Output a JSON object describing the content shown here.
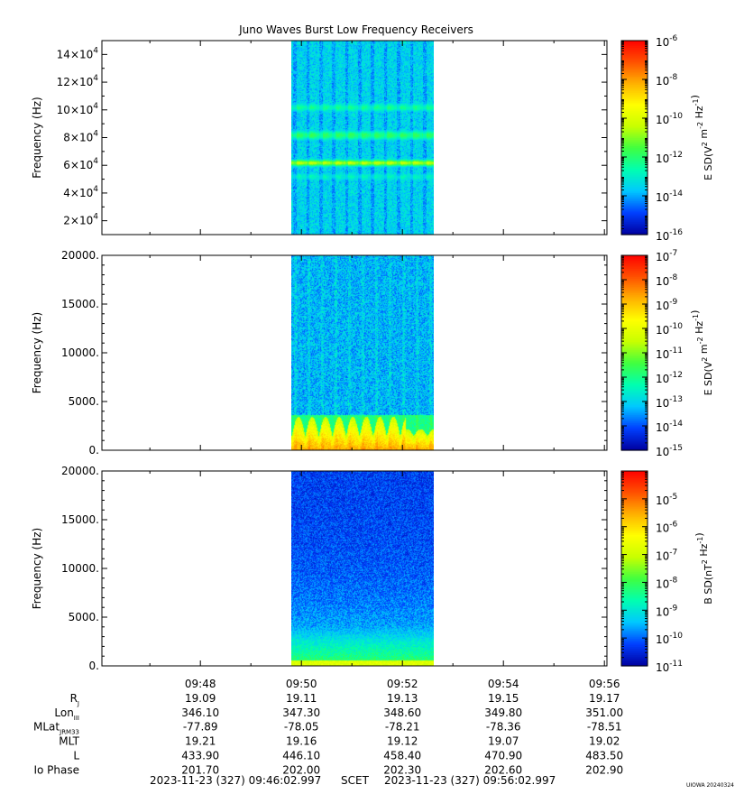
{
  "title": "Juno Waves Burst Low Frequency Receivers",
  "watermark": "UIOWA 20240324",
  "time_range": {
    "start": "2023-11-23 (327) 09:46:02.997",
    "label": "SCET",
    "end": "2023-11-23 (327) 09:56:02.997"
  },
  "chart_data": [
    {
      "type": "heatmap",
      "title": "",
      "ylabel": "Frequency (Hz)",
      "ytick_labels": [
        "14×10^4",
        "12×10^4",
        "10×10^4",
        "8×10^4",
        "6×10^4",
        "4×10^4",
        "2×10^4"
      ],
      "ytick_values": [
        140000,
        120000,
        100000,
        80000,
        60000,
        40000,
        20000
      ],
      "ylim": [
        10000,
        150000
      ],
      "xlim": [
        "09:46:02.997",
        "09:56:02.997"
      ],
      "data_interval": [
        "09:49:48",
        "09:52:37"
      ],
      "colorbar": {
        "label": "E SD(V^2 m^-2 Hz^-1)",
        "scale": "log",
        "range": [
          -16,
          -6
        ],
        "tick_exponents": [
          -6,
          -8,
          -10,
          -12,
          -14,
          -16
        ],
        "colors": [
          "#0000a0",
          "#0040ff",
          "#00c8ff",
          "#00ffb0",
          "#40ff40",
          "#c8ff00",
          "#ffff00",
          "#ffb000",
          "#ff5000",
          "#ff0000"
        ]
      },
      "features": [
        {
          "freq_hz": 62000,
          "level_exp": -10.5,
          "note": "intense band"
        },
        {
          "freq_hz": 82000,
          "level_exp": -12.0,
          "note": "band"
        },
        {
          "freq_hz": 102000,
          "level_exp": -12.5,
          "note": "band"
        },
        {
          "freq_hz": 52000,
          "level_exp": -13.0,
          "note": "band"
        }
      ],
      "background_level_exp": -13.5
    },
    {
      "type": "heatmap",
      "title": "",
      "ylabel": "Frequency (Hz)",
      "ytick_labels": [
        "20000.",
        "15000.",
        "10000.",
        "5000.",
        "0."
      ],
      "ytick_values": [
        20000,
        15000,
        10000,
        5000,
        0
      ],
      "ylim": [
        0,
        20000
      ],
      "xlim": [
        "09:46:02.997",
        "09:56:02.997"
      ],
      "data_interval": [
        "09:49:48",
        "09:52:37"
      ],
      "colorbar": {
        "label": "E SD(V^2 m^-2 Hz^-1)",
        "scale": "log",
        "range": [
          -15,
          -7
        ],
        "tick_exponents": [
          -7,
          -8,
          -9,
          -10,
          -11,
          -12,
          -13,
          -14,
          -15
        ],
        "colors": [
          "#0000a0",
          "#0040ff",
          "#00c8ff",
          "#00ffb0",
          "#40ff40",
          "#c8ff00",
          "#ffff00",
          "#ffb000",
          "#ff5000",
          "#ff0000"
        ]
      },
      "features": [
        {
          "freq_range_hz": [
            0,
            3700
          ],
          "level_exp": -10.5,
          "note": "intense low-frequency emission, periodic peaks"
        }
      ],
      "background_level_exp": -13.3
    },
    {
      "type": "heatmap",
      "title": "",
      "ylabel": "Frequency (Hz)",
      "ytick_labels": [
        "20000.",
        "15000.",
        "10000.",
        "5000.",
        "0."
      ],
      "ytick_values": [
        20000,
        15000,
        10000,
        5000,
        0
      ],
      "ylim": [
        0,
        20000
      ],
      "xlim": [
        "09:46:02.997",
        "09:56:02.997"
      ],
      "data_interval": [
        "09:49:48",
        "09:52:37"
      ],
      "colorbar": {
        "label": "B SD(nT^2 Hz^-1)",
        "scale": "log",
        "range": [
          -11,
          -4
        ],
        "tick_exponents": [
          -5,
          -6,
          -7,
          -8,
          -9,
          -10,
          -11
        ],
        "colors": [
          "#0000a0",
          "#0040ff",
          "#00c8ff",
          "#00ffb0",
          "#40ff40",
          "#c8ff00",
          "#ffff00",
          "#ffb000",
          "#ff5000",
          "#ff0000"
        ]
      },
      "features": [
        {
          "freq_range_hz": [
            0,
            4000
          ],
          "level_exp": -8.0,
          "note": "low-frequency enhancement"
        }
      ],
      "background_level_exp": -10.3
    }
  ],
  "ephemeris": {
    "times": [
      "09:48",
      "09:50",
      "09:52",
      "09:54",
      "09:56"
    ],
    "rows": [
      {
        "label": "R",
        "sub": "J",
        "values": [
          "19.09",
          "19.11",
          "19.13",
          "19.15",
          "19.17"
        ]
      },
      {
        "label": "Lon",
        "sub": "III",
        "values": [
          "346.10",
          "347.30",
          "348.60",
          "349.80",
          "351.00"
        ]
      },
      {
        "label": "MLat",
        "sub": "JRM33",
        "values": [
          "-77.89",
          "-78.05",
          "-78.21",
          "-78.36",
          "-78.51"
        ]
      },
      {
        "label": "MLT",
        "sub": "",
        "values": [
          "19.21",
          "19.16",
          "19.12",
          "19.07",
          "19.02"
        ]
      },
      {
        "label": "L",
        "sub": "",
        "values": [
          "433.90",
          "446.10",
          "458.40",
          "470.90",
          "483.50"
        ]
      },
      {
        "label": "Io Phase",
        "sub": "",
        "values": [
          "201.70",
          "202.00",
          "202.30",
          "202.60",
          "202.90"
        ]
      }
    ]
  }
}
